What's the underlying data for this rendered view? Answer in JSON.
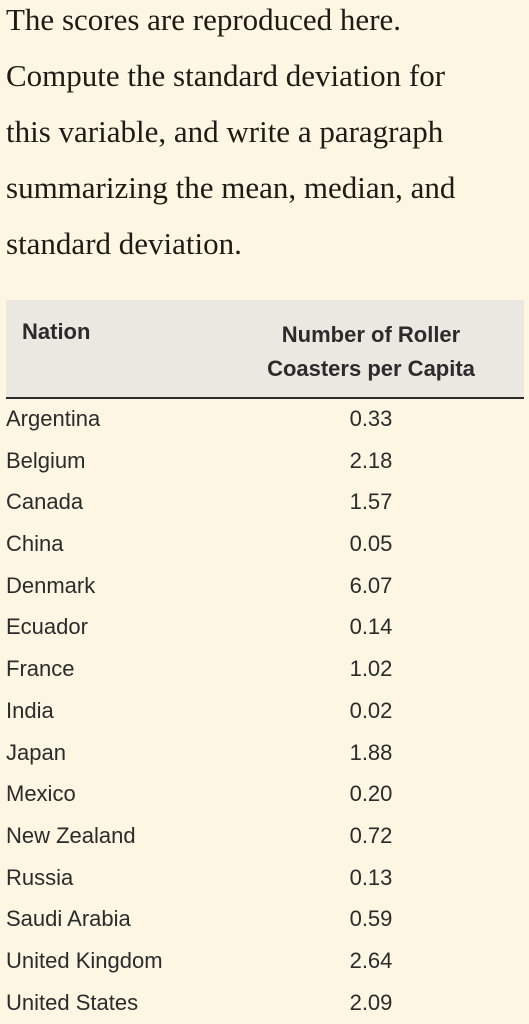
{
  "prompt": {
    "lines": [
      "The scores are reproduced here.",
      "Compute the standard deviation for",
      "this variable, and write a paragraph",
      "summarizing the mean, median, and",
      "standard deviation."
    ]
  },
  "table": {
    "headers": {
      "nation": "Nation",
      "number_line1": "Number of Roller",
      "number_line2": "Coasters per Capita"
    },
    "rows": [
      {
        "nation": "Argentina",
        "value": "0.33"
      },
      {
        "nation": "Belgium",
        "value": "2.18"
      },
      {
        "nation": "Canada",
        "value": "1.57"
      },
      {
        "nation": "China",
        "value": "0.05"
      },
      {
        "nation": "Denmark",
        "value": "6.07"
      },
      {
        "nation": "Ecuador",
        "value": "0.14"
      },
      {
        "nation": "France",
        "value": "1.02"
      },
      {
        "nation": "India",
        "value": "0.02"
      },
      {
        "nation": "Japan",
        "value": "1.88"
      },
      {
        "nation": "Mexico",
        "value": "0.20"
      },
      {
        "nation": "New Zealand",
        "value": "0.72"
      },
      {
        "nation": "Russia",
        "value": "0.13"
      },
      {
        "nation": "Saudi Arabia",
        "value": "0.59"
      },
      {
        "nation": "United Kingdom",
        "value": "2.64"
      },
      {
        "nation": "United States",
        "value": "2.09"
      }
    ]
  }
}
